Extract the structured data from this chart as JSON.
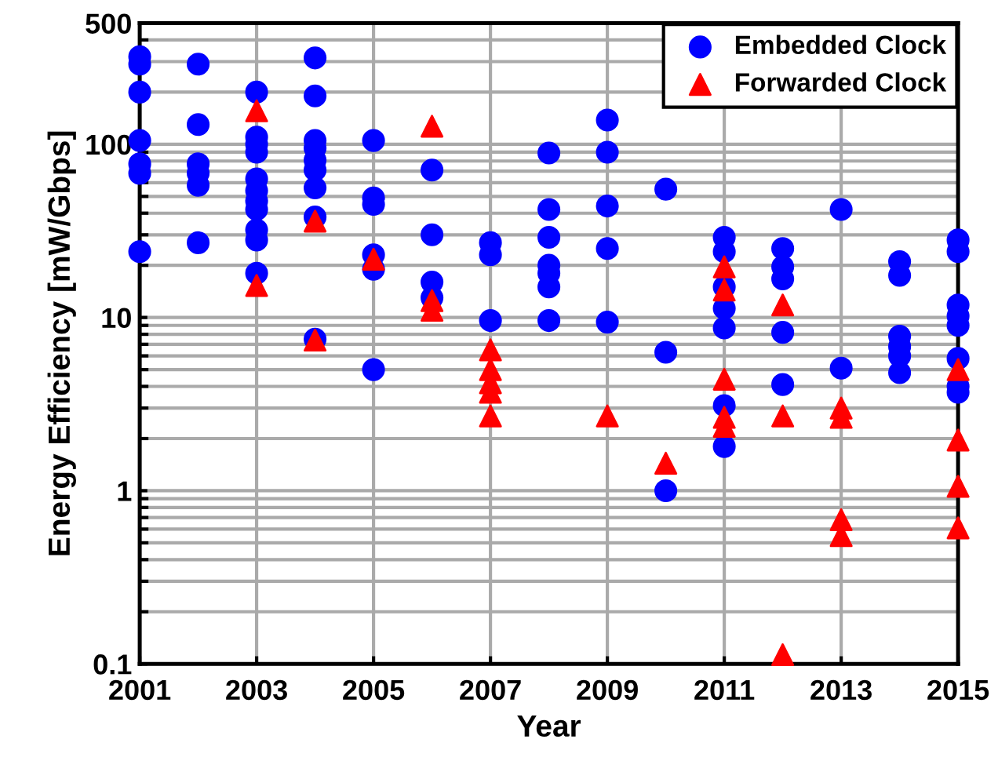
{
  "chart_data": {
    "type": "scatter",
    "xlabel": "Year",
    "ylabel": "Energy Efficiency [mW/Gbps]",
    "log": "y",
    "grid": true,
    "legend": "top right",
    "xlim": [
      2001,
      2015
    ],
    "xticks": [
      2001,
      2003,
      2005,
      2007,
      2009,
      2011,
      2013,
      2015
    ],
    "ylim": [
      0.1,
      500
    ],
    "yticks": [
      0.1,
      1,
      10,
      100,
      500
    ],
    "series": [
      {
        "name": "Embedded Clock",
        "color": "#0000ff",
        "marker": "circle",
        "x": [
          2001,
          2001,
          2001,
          2001,
          2001,
          2001,
          2001,
          2002,
          2002,
          2002,
          2002,
          2002,
          2002,
          2003,
          2003,
          2003,
          2003,
          2003,
          2003,
          2003,
          2003,
          2003,
          2003,
          2003,
          2004,
          2004,
          2004,
          2004,
          2004,
          2004,
          2004,
          2004,
          2004,
          2005,
          2005,
          2005,
          2005,
          2005,
          2005,
          2006,
          2006,
          2006,
          2006,
          2007,
          2007,
          2007,
          2008,
          2008,
          2008,
          2008,
          2008,
          2008,
          2008,
          2009,
          2009,
          2009,
          2009,
          2009,
          2010,
          2010,
          2010,
          2011,
          2011,
          2011,
          2011,
          2011,
          2011,
          2011,
          2012,
          2012,
          2012,
          2012,
          2012,
          2013,
          2013,
          2014,
          2014,
          2014,
          2014,
          2014,
          2014,
          2015,
          2015,
          2015,
          2015,
          2015,
          2015,
          2015,
          2015
        ],
        "values": [
          320,
          290,
          200,
          105,
          77,
          68,
          24,
          290,
          130,
          77,
          68,
          58,
          27,
          200,
          110,
          100,
          90,
          63,
          54,
          47,
          42,
          32,
          28,
          18,
          315,
          190,
          105,
          95,
          81,
          71,
          56,
          38,
          7.5,
          105,
          49,
          45,
          23,
          19,
          5.0,
          71,
          30,
          16,
          13,
          27,
          23,
          9.6,
          89,
          42,
          29,
          20,
          18,
          15,
          9.6,
          138,
          90,
          44,
          25,
          9.4,
          55,
          6.3,
          1.0,
          29,
          24,
          15,
          11.3,
          8.7,
          3.1,
          1.8,
          25,
          19.6,
          16.7,
          8.2,
          4.1,
          42,
          5.1,
          21,
          17.5,
          7.8,
          6.8,
          6.0,
          4.8,
          28,
          24,
          11.8,
          10.2,
          9.0,
          5.8,
          4.0,
          3.7
        ]
      },
      {
        "name": "Forwarded Clock",
        "color": "#ff0000",
        "marker": "triangle",
        "x": [
          2003,
          2003,
          2004,
          2004,
          2005,
          2006,
          2006,
          2006,
          2007,
          2007,
          2007,
          2007,
          2007,
          2009,
          2010,
          2011,
          2011,
          2011,
          2011,
          2011,
          2012,
          2012,
          2012,
          2013,
          2013,
          2013,
          2013,
          2015,
          2015,
          2015,
          2015
        ],
        "values": [
          156,
          15.3,
          36,
          7.4,
          21.7,
          127,
          12.5,
          11,
          6.5,
          5.0,
          4.2,
          3.7,
          2.7,
          2.7,
          1.44,
          19.6,
          14.4,
          4.4,
          2.65,
          2.35,
          11.8,
          2.7,
          0.113,
          3.0,
          2.65,
          0.68,
          0.55,
          5.0,
          1.96,
          1.06,
          0.61
        ]
      }
    ]
  }
}
